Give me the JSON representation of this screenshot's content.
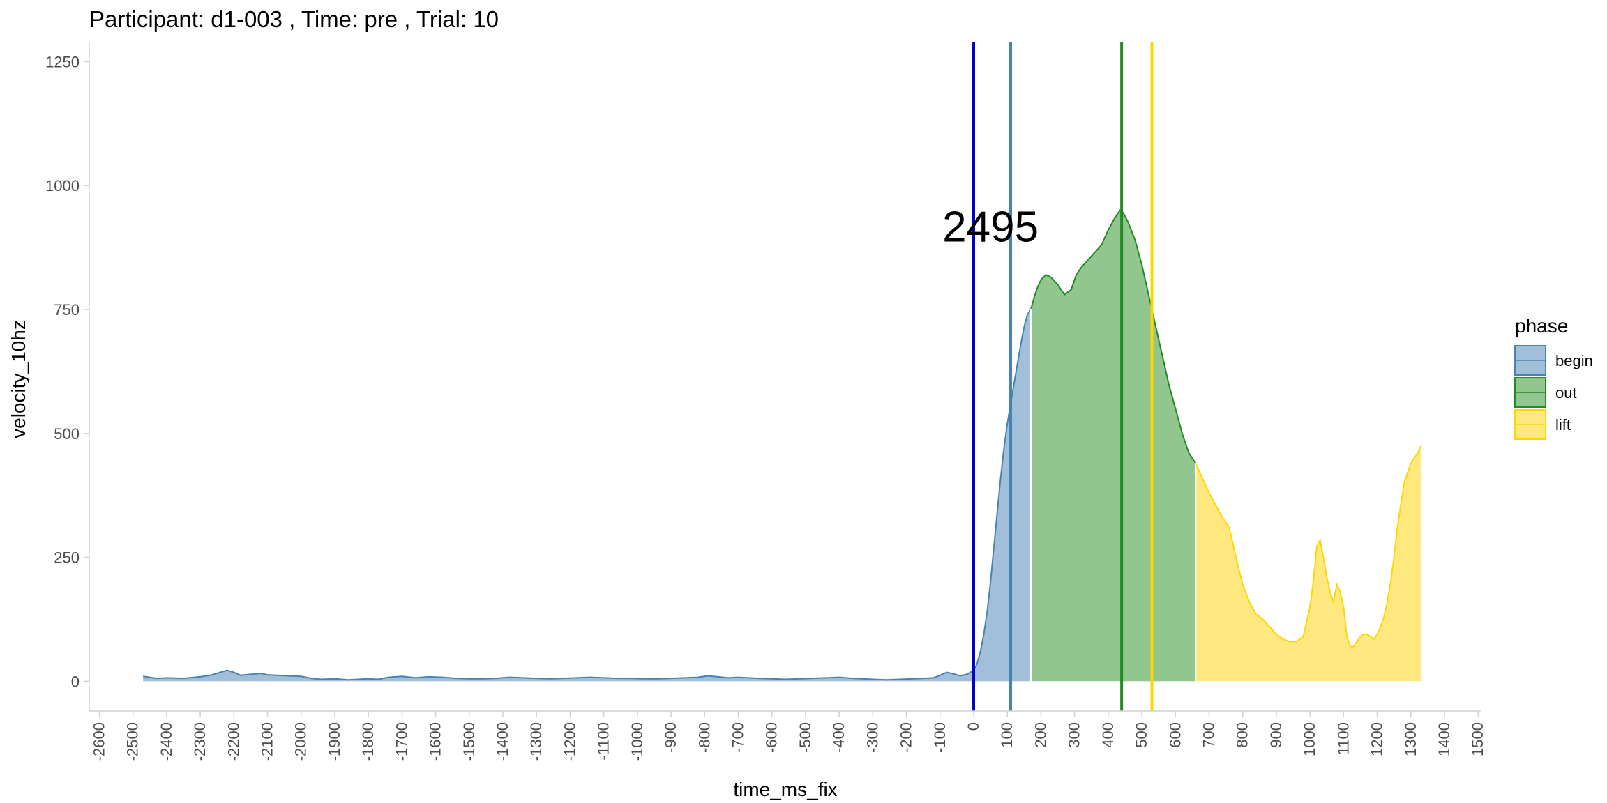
{
  "chart_data": {
    "type": "area",
    "title": "Participant:  d1-003 , Time: pre , Trial:  10",
    "xlabel": "time_ms_fix",
    "ylabel": "velocity_10hz",
    "xlim": [
      -2630,
      1510
    ],
    "ylim": [
      -60,
      1290
    ],
    "x_ticks": [
      -2600,
      -2500,
      -2400,
      -2300,
      -2200,
      -2100,
      -2000,
      -1900,
      -1800,
      -1700,
      -1600,
      -1500,
      -1400,
      -1300,
      -1200,
      -1100,
      -1000,
      -900,
      -800,
      -700,
      -600,
      -500,
      -400,
      -300,
      -200,
      -100,
      0,
      100,
      200,
      300,
      400,
      500,
      600,
      700,
      800,
      900,
      1000,
      1100,
      1200,
      1300,
      1400,
      1500
    ],
    "y_ticks": [
      0,
      250,
      500,
      750,
      1000,
      1250
    ],
    "grid": false,
    "legend": {
      "title": "phase",
      "placement": "right",
      "entries": [
        {
          "label": "begin",
          "fill": "#a2bfda",
          "stroke": "#4682b4"
        },
        {
          "label": "out",
          "fill": "#92c68f",
          "stroke": "#228b22"
        },
        {
          "label": "lift",
          "fill": "#ffe97f",
          "stroke": "#ffd700"
        }
      ]
    },
    "series": [
      {
        "name": "begin",
        "fill": "#a2bfda",
        "stroke": "#4682b4",
        "x": [
          -2470,
          -2450,
          -2430,
          -2400,
          -2350,
          -2300,
          -2270,
          -2240,
          -2220,
          -2200,
          -2180,
          -2150,
          -2120,
          -2100,
          -2070,
          -2040,
          -2000,
          -1970,
          -1940,
          -1900,
          -1860,
          -1830,
          -1800,
          -1770,
          -1740,
          -1700,
          -1660,
          -1620,
          -1580,
          -1540,
          -1500,
          -1460,
          -1420,
          -1380,
          -1340,
          -1300,
          -1260,
          -1220,
          -1180,
          -1140,
          -1100,
          -1060,
          -1020,
          -980,
          -940,
          -900,
          -860,
          -820,
          -790,
          -760,
          -730,
          -700,
          -670,
          -640,
          -600,
          -560,
          -520,
          -480,
          -440,
          -400,
          -360,
          -330,
          -300,
          -260,
          -220,
          -180,
          -150,
          -120,
          -100,
          -80,
          -60,
          -40,
          -20,
          0,
          10,
          20,
          30,
          40,
          50,
          60,
          70,
          80,
          90,
          100,
          110,
          120,
          130,
          140,
          150,
          160,
          170
        ],
        "y": [
          10,
          8,
          6,
          7,
          6,
          9,
          12,
          18,
          22,
          18,
          12,
          14,
          16,
          13,
          12,
          11,
          10,
          6,
          4,
          5,
          3,
          4,
          5,
          4,
          8,
          10,
          7,
          9,
          8,
          6,
          5,
          5,
          6,
          8,
          7,
          6,
          5,
          6,
          7,
          8,
          7,
          6,
          6,
          5,
          5,
          6,
          7,
          8,
          11,
          9,
          7,
          8,
          7,
          6,
          5,
          4,
          5,
          6,
          7,
          8,
          6,
          5,
          4,
          3,
          4,
          5,
          6,
          7,
          12,
          18,
          15,
          11,
          14,
          22,
          35,
          60,
          95,
          140,
          200,
          270,
          340,
          410,
          470,
          520,
          560,
          600,
          640,
          680,
          715,
          740,
          750
        ]
      },
      {
        "name": "out",
        "fill": "#92c68f",
        "stroke": "#228b22",
        "x": [
          170,
          180,
          190,
          200,
          215,
          230,
          250,
          270,
          290,
          305,
          320,
          340,
          360,
          380,
          400,
          420,
          435,
          445,
          460,
          480,
          500,
          520,
          540,
          560,
          580,
          600,
          620,
          640,
          660
        ],
        "y": [
          750,
          775,
          795,
          810,
          820,
          815,
          800,
          780,
          790,
          820,
          835,
          850,
          865,
          880,
          910,
          935,
          950,
          945,
          925,
          890,
          840,
          780,
          720,
          660,
          600,
          550,
          500,
          460,
          440
        ]
      },
      {
        "name": "lift",
        "fill": "#ffe97f",
        "stroke": "#ffd700",
        "x": [
          660,
          680,
          700,
          720,
          740,
          760,
          780,
          800,
          820,
          840,
          860,
          880,
          900,
          920,
          940,
          960,
          980,
          1000,
          1010,
          1020,
          1030,
          1040,
          1050,
          1060,
          1070,
          1080,
          1090,
          1100,
          1110,
          1120,
          1130,
          1140,
          1150,
          1160,
          1170,
          1180,
          1190,
          1200,
          1210,
          1220,
          1230,
          1240,
          1250,
          1260,
          1280,
          1300,
          1320,
          1330
        ],
        "y": [
          440,
          410,
          380,
          355,
          330,
          310,
          250,
          195,
          160,
          135,
          125,
          110,
          95,
          85,
          80,
          80,
          90,
          150,
          200,
          270,
          285,
          250,
          210,
          180,
          160,
          195,
          180,
          150,
          90,
          70,
          70,
          80,
          90,
          95,
          95,
          90,
          85,
          95,
          110,
          130,
          160,
          200,
          250,
          310,
          400,
          440,
          460,
          475
        ]
      }
    ],
    "vlines": [
      {
        "x": 0,
        "color": "#0000cd"
      },
      {
        "x": 110,
        "color": "#4682b4"
      },
      {
        "x": 440,
        "color": "#228b22"
      },
      {
        "x": 530,
        "color": "#ffd700"
      }
    ],
    "annotations": [
      {
        "text": "2495",
        "x": 50,
        "y": 910
      }
    ]
  }
}
